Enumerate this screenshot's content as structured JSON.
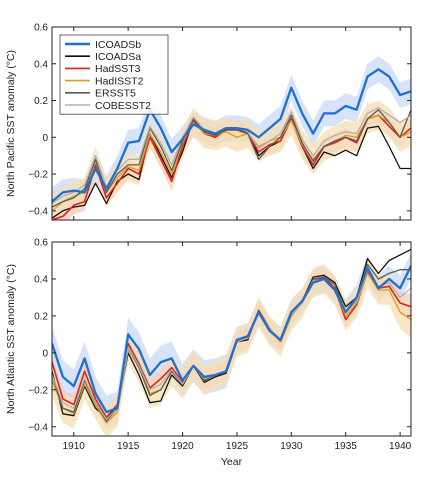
{
  "colors": {
    "ICOADSb": "#1f6fd1",
    "band_b": "#c9daf6",
    "ICOADSa": "#111111",
    "HadSST3": "#e02020",
    "band_h3": "#f6c9c2",
    "HadISST2": "#d9a21b",
    "band_h2": "#f6dfb4",
    "ERSST5": "#5a5a5a",
    "COBESST2": "#b0b0b0"
  },
  "chart_data": [
    {
      "type": "line",
      "ylabel": "North Pacific SST anomaly (°C)",
      "xlabel": "",
      "xlim": [
        1908,
        1941
      ],
      "ylim": [
        -0.45,
        0.6
      ],
      "yticks": [
        -0.4,
        -0.2,
        0,
        0.2,
        0.4,
        0.6
      ],
      "xticks": [
        1910,
        1915,
        1920,
        1925,
        1930,
        1935,
        1940
      ],
      "legend_position": "top-left",
      "grid": false,
      "x": [
        1908,
        1909,
        1910,
        1911,
        1912,
        1913,
        1914,
        1915,
        1916,
        1917,
        1918,
        1919,
        1920,
        1921,
        1922,
        1923,
        1924,
        1925,
        1926,
        1927,
        1928,
        1929,
        1930,
        1931,
        1932,
        1933,
        1934,
        1935,
        1936,
        1937,
        1938,
        1939,
        1940,
        1941
      ],
      "series": [
        {
          "name": "ICOADSb",
          "color": "#1f6fd1",
          "width": 2.3,
          "values": [
            -0.35,
            -0.3,
            -0.29,
            -0.3,
            -0.17,
            -0.28,
            -0.17,
            -0.03,
            -0.02,
            0.15,
            0.05,
            -0.08,
            -0.01,
            0.07,
            0.04,
            0.02,
            0.05,
            0.05,
            0.04,
            0.0,
            0.05,
            0.1,
            0.27,
            0.13,
            0.02,
            0.13,
            0.13,
            0.17,
            0.15,
            0.33,
            0.37,
            0.33,
            0.23,
            0.25
          ],
          "band_upper": [
            -0.27,
            -0.23,
            -0.22,
            -0.23,
            -0.1,
            -0.21,
            -0.1,
            0.04,
            0.05,
            0.22,
            0.12,
            -0.01,
            0.06,
            0.14,
            0.11,
            0.09,
            0.12,
            0.12,
            0.11,
            0.07,
            0.12,
            0.17,
            0.34,
            0.2,
            0.09,
            0.2,
            0.2,
            0.24,
            0.22,
            0.4,
            0.44,
            0.4,
            0.3,
            0.32
          ],
          "band_lower": [
            -0.43,
            -0.37,
            -0.36,
            -0.37,
            -0.24,
            -0.35,
            -0.24,
            -0.1,
            -0.09,
            0.08,
            -0.02,
            -0.15,
            -0.08,
            0.0,
            -0.03,
            -0.05,
            -0.02,
            -0.02,
            -0.03,
            -0.07,
            -0.02,
            0.03,
            0.2,
            0.06,
            -0.05,
            0.06,
            0.06,
            0.1,
            0.08,
            0.26,
            0.3,
            0.26,
            0.16,
            0.18
          ]
        },
        {
          "name": "ICOADSa",
          "color": "#111111",
          "width": 1.3,
          "values": [
            -0.44,
            -0.4,
            -0.38,
            -0.37,
            -0.25,
            -0.36,
            -0.24,
            -0.2,
            -0.23,
            0.02,
            -0.1,
            -0.22,
            -0.08,
            0.1,
            0.03,
            0.0,
            0.04,
            0.04,
            0.03,
            -0.1,
            -0.05,
            -0.02,
            0.1,
            -0.05,
            -0.17,
            -0.08,
            -0.1,
            -0.07,
            -0.1,
            0.05,
            0.06,
            -0.05,
            -0.17,
            -0.17
          ]
        },
        {
          "name": "HadSST3",
          "color": "#e02020",
          "width": 1.6,
          "values": [
            -0.45,
            -0.43,
            -0.37,
            -0.35,
            -0.15,
            -0.33,
            -0.25,
            -0.17,
            -0.2,
            0.0,
            -0.12,
            -0.24,
            -0.05,
            0.09,
            0.02,
            0.0,
            0.04,
            0.04,
            0.02,
            -0.08,
            -0.04,
            -0.02,
            0.1,
            -0.05,
            -0.15,
            -0.05,
            -0.03,
            0.0,
            -0.03,
            0.1,
            0.12,
            0.06,
            0.0,
            0.05
          ],
          "band_upper": [
            -0.4,
            -0.38,
            -0.32,
            -0.3,
            -0.1,
            -0.28,
            -0.2,
            -0.12,
            -0.15,
            0.05,
            -0.07,
            -0.19,
            0.0,
            0.14,
            0.07,
            0.05,
            0.09,
            0.09,
            0.07,
            -0.03,
            0.01,
            0.03,
            0.15,
            0.0,
            -0.1,
            0.0,
            0.02,
            0.05,
            0.02,
            0.15,
            0.17,
            0.11,
            0.05,
            0.1
          ],
          "band_lower": [
            -0.5,
            -0.48,
            -0.42,
            -0.4,
            -0.2,
            -0.38,
            -0.3,
            -0.22,
            -0.25,
            -0.05,
            -0.17,
            -0.29,
            -0.1,
            0.04,
            -0.03,
            -0.05,
            -0.01,
            -0.01,
            -0.03,
            -0.13,
            -0.09,
            -0.07,
            0.05,
            -0.1,
            -0.2,
            -0.1,
            -0.08,
            -0.05,
            -0.08,
            0.05,
            0.07,
            0.01,
            -0.05,
            0.0
          ]
        },
        {
          "name": "HadISST2",
          "color": "#d9a21b",
          "width": 1.3,
          "values": [
            -0.4,
            -0.35,
            -0.32,
            -0.3,
            -0.13,
            -0.3,
            -0.22,
            -0.16,
            -0.18,
            0.02,
            -0.08,
            -0.2,
            -0.03,
            0.08,
            0.02,
            0.01,
            0.03,
            0.0,
            0.02,
            -0.05,
            -0.02,
            0.0,
            0.09,
            -0.04,
            -0.12,
            -0.05,
            -0.02,
            0.01,
            0.0,
            0.1,
            0.12,
            0.08,
            0.0,
            0.03
          ],
          "band_upper": [
            -0.32,
            -0.27,
            -0.24,
            -0.22,
            -0.05,
            -0.22,
            -0.14,
            -0.08,
            -0.1,
            0.1,
            0.0,
            -0.12,
            0.05,
            0.16,
            0.1,
            0.09,
            0.11,
            0.08,
            0.1,
            0.03,
            0.06,
            0.08,
            0.17,
            0.04,
            -0.04,
            0.03,
            0.06,
            0.09,
            0.08,
            0.18,
            0.2,
            0.16,
            0.08,
            0.11
          ],
          "band_lower": [
            -0.48,
            -0.43,
            -0.4,
            -0.38,
            -0.21,
            -0.38,
            -0.3,
            -0.24,
            -0.26,
            -0.06,
            -0.16,
            -0.28,
            -0.11,
            0.0,
            -0.06,
            -0.07,
            -0.05,
            -0.08,
            -0.06,
            -0.13,
            -0.1,
            -0.08,
            0.01,
            -0.12,
            -0.2,
            -0.13,
            -0.1,
            -0.07,
            -0.08,
            0.02,
            0.04,
            0.0,
            -0.08,
            -0.05
          ]
        },
        {
          "name": "ERSST5",
          "color": "#5a5a5a",
          "width": 1.3,
          "values": [
            -0.38,
            -0.35,
            -0.33,
            -0.28,
            -0.12,
            -0.3,
            -0.2,
            -0.15,
            -0.15,
            0.05,
            -0.05,
            -0.18,
            -0.02,
            0.1,
            0.03,
            0.01,
            0.04,
            0.04,
            0.02,
            -0.12,
            -0.05,
            0.0,
            0.12,
            -0.03,
            -0.13,
            -0.05,
            -0.02,
            0.0,
            -0.02,
            0.1,
            0.15,
            0.08,
            0.0,
            0.15
          ]
        },
        {
          "name": "COBESST2",
          "color": "#b0b0b0",
          "width": 1.3,
          "values": [
            -0.36,
            -0.32,
            -0.3,
            -0.26,
            -0.1,
            -0.27,
            -0.18,
            -0.12,
            -0.12,
            0.06,
            -0.03,
            -0.15,
            0.0,
            0.11,
            0.04,
            0.02,
            0.05,
            0.05,
            0.03,
            -0.06,
            -0.02,
            0.02,
            0.14,
            -0.01,
            -0.1,
            -0.02,
            0.01,
            0.03,
            0.02,
            0.13,
            0.16,
            0.12,
            0.08,
            0.12
          ]
        }
      ]
    },
    {
      "type": "line",
      "ylabel": "North Atlantic SST anomaly (°C)",
      "xlabel": "Year",
      "xlim": [
        1908,
        1941
      ],
      "ylim": [
        -0.45,
        0.6
      ],
      "yticks": [
        -0.4,
        -0.2,
        0,
        0.2,
        0.4,
        0.6
      ],
      "xticks": [
        1910,
        1915,
        1920,
        1925,
        1930,
        1935,
        1940
      ],
      "legend_position": "none",
      "grid": false,
      "x": [
        1908,
        1909,
        1910,
        1911,
        1912,
        1913,
        1914,
        1915,
        1916,
        1917,
        1918,
        1919,
        1920,
        1921,
        1922,
        1923,
        1924,
        1925,
        1926,
        1927,
        1928,
        1929,
        1930,
        1931,
        1932,
        1933,
        1934,
        1935,
        1936,
        1937,
        1938,
        1939,
        1940,
        1941
      ],
      "series": [
        {
          "name": "ICOADSb",
          "color": "#1f6fd1",
          "width": 2.3,
          "values": [
            0.05,
            -0.13,
            -0.18,
            -0.03,
            -0.22,
            -0.32,
            -0.3,
            0.1,
            0.02,
            -0.12,
            -0.05,
            -0.03,
            -0.15,
            -0.07,
            -0.13,
            -0.12,
            -0.1,
            0.07,
            0.09,
            0.22,
            0.12,
            0.07,
            0.22,
            0.28,
            0.38,
            0.4,
            0.34,
            0.22,
            0.3,
            0.46,
            0.35,
            0.4,
            0.35,
            0.47
          ],
          "band_upper": [
            0.14,
            -0.04,
            -0.09,
            0.06,
            -0.13,
            -0.23,
            -0.21,
            0.19,
            0.11,
            -0.03,
            0.04,
            0.06,
            -0.06,
            0.02,
            -0.04,
            -0.03,
            -0.01,
            0.14,
            0.16,
            0.29,
            0.19,
            0.14,
            0.29,
            0.35,
            0.45,
            0.47,
            0.41,
            0.29,
            0.37,
            0.53,
            0.42,
            0.47,
            0.42,
            0.54
          ],
          "band_lower": [
            -0.04,
            -0.22,
            -0.27,
            -0.12,
            -0.31,
            -0.41,
            -0.39,
            0.01,
            -0.07,
            -0.21,
            -0.14,
            -0.12,
            -0.24,
            -0.16,
            -0.22,
            -0.21,
            -0.19,
            0.0,
            0.02,
            0.15,
            0.05,
            0.0,
            0.15,
            0.21,
            0.31,
            0.33,
            0.27,
            0.15,
            0.23,
            0.39,
            0.28,
            0.33,
            0.28,
            0.4
          ]
        },
        {
          "name": "ICOADSa",
          "color": "#111111",
          "width": 1.3,
          "values": [
            -0.1,
            -0.33,
            -0.34,
            -0.18,
            -0.3,
            -0.35,
            -0.3,
            0.0,
            -0.12,
            -0.27,
            -0.26,
            -0.12,
            -0.18,
            -0.07,
            -0.16,
            -0.13,
            -0.11,
            0.06,
            0.07,
            0.23,
            0.13,
            0.06,
            0.2,
            0.28,
            0.41,
            0.42,
            0.38,
            0.25,
            0.3,
            0.51,
            0.43,
            0.5,
            0.53,
            0.56
          ]
        },
        {
          "name": "HadSST3",
          "color": "#e02020",
          "width": 1.6,
          "values": [
            -0.05,
            -0.25,
            -0.28,
            -0.1,
            -0.25,
            -0.35,
            -0.28,
            0.05,
            -0.06,
            -0.19,
            -0.14,
            -0.08,
            -0.16,
            -0.07,
            -0.15,
            -0.12,
            -0.1,
            0.07,
            0.08,
            0.23,
            0.13,
            0.06,
            0.21,
            0.28,
            0.39,
            0.41,
            0.35,
            0.18,
            0.26,
            0.44,
            0.35,
            0.36,
            0.27,
            0.25
          ],
          "band_upper": [
            0.0,
            -0.2,
            -0.23,
            -0.05,
            -0.2,
            -0.3,
            -0.23,
            0.1,
            -0.01,
            -0.14,
            -0.09,
            -0.03,
            -0.11,
            -0.02,
            -0.1,
            -0.07,
            -0.05,
            0.12,
            0.13,
            0.28,
            0.18,
            0.11,
            0.26,
            0.33,
            0.44,
            0.46,
            0.4,
            0.23,
            0.31,
            0.49,
            0.4,
            0.41,
            0.33,
            0.32
          ],
          "band_lower": [
            -0.1,
            -0.3,
            -0.33,
            -0.15,
            -0.3,
            -0.4,
            -0.33,
            0.0,
            -0.11,
            -0.24,
            -0.19,
            -0.13,
            -0.21,
            -0.12,
            -0.2,
            -0.17,
            -0.15,
            0.02,
            0.03,
            0.18,
            0.08,
            0.01,
            0.16,
            0.23,
            0.34,
            0.36,
            0.3,
            0.13,
            0.21,
            0.39,
            0.3,
            0.31,
            0.21,
            0.18
          ]
        },
        {
          "name": "HadISST2",
          "color": "#d9a21b",
          "width": 1.3,
          "values": [
            -0.15,
            -0.3,
            -0.33,
            -0.17,
            -0.28,
            -0.38,
            -0.32,
            0.02,
            -0.08,
            -0.22,
            -0.2,
            -0.1,
            -0.17,
            -0.07,
            -0.15,
            -0.12,
            -0.1,
            0.06,
            0.08,
            0.22,
            0.12,
            0.06,
            0.2,
            0.27,
            0.38,
            0.4,
            0.34,
            0.2,
            0.27,
            0.43,
            0.34,
            0.34,
            0.22,
            0.18
          ],
          "band_upper": [
            -0.07,
            -0.22,
            -0.25,
            -0.09,
            -0.2,
            -0.3,
            -0.24,
            0.1,
            0.0,
            -0.14,
            -0.12,
            -0.02,
            -0.09,
            0.01,
            -0.07,
            -0.04,
            -0.02,
            0.14,
            0.16,
            0.3,
            0.2,
            0.14,
            0.28,
            0.35,
            0.46,
            0.48,
            0.42,
            0.28,
            0.35,
            0.51,
            0.42,
            0.42,
            0.31,
            0.28
          ],
          "band_lower": [
            -0.23,
            -0.38,
            -0.41,
            -0.25,
            -0.36,
            -0.46,
            -0.4,
            -0.06,
            -0.16,
            -0.3,
            -0.28,
            -0.18,
            -0.25,
            -0.15,
            -0.23,
            -0.2,
            -0.18,
            -0.02,
            0.0,
            0.14,
            0.04,
            -0.02,
            0.12,
            0.19,
            0.3,
            0.32,
            0.26,
            0.12,
            0.19,
            0.35,
            0.26,
            0.26,
            0.13,
            0.08
          ]
        },
        {
          "name": "ERSST5",
          "color": "#5a5a5a",
          "width": 1.3,
          "values": [
            -0.12,
            -0.3,
            -0.32,
            -0.15,
            -0.27,
            -0.37,
            -0.3,
            0.03,
            -0.08,
            -0.23,
            -0.2,
            -0.1,
            -0.17,
            -0.07,
            -0.15,
            -0.12,
            -0.1,
            0.06,
            0.08,
            0.23,
            0.13,
            0.07,
            0.21,
            0.28,
            0.4,
            0.41,
            0.37,
            0.22,
            0.28,
            0.48,
            0.4,
            0.43,
            0.45,
            0.45
          ]
        },
        {
          "name": "COBESST2",
          "color": "#b0b0b0",
          "width": 1.3,
          "values": [
            -0.12,
            -0.27,
            -0.3,
            -0.14,
            -0.27,
            -0.36,
            -0.3,
            0.03,
            -0.07,
            -0.2,
            -0.17,
            -0.09,
            -0.17,
            -0.07,
            -0.14,
            -0.12,
            -0.1,
            0.06,
            0.08,
            0.22,
            0.13,
            0.07,
            0.21,
            0.27,
            0.39,
            0.4,
            0.34,
            0.22,
            0.28,
            0.45,
            0.36,
            0.38,
            0.3,
            0.35
          ]
        }
      ]
    }
  ]
}
